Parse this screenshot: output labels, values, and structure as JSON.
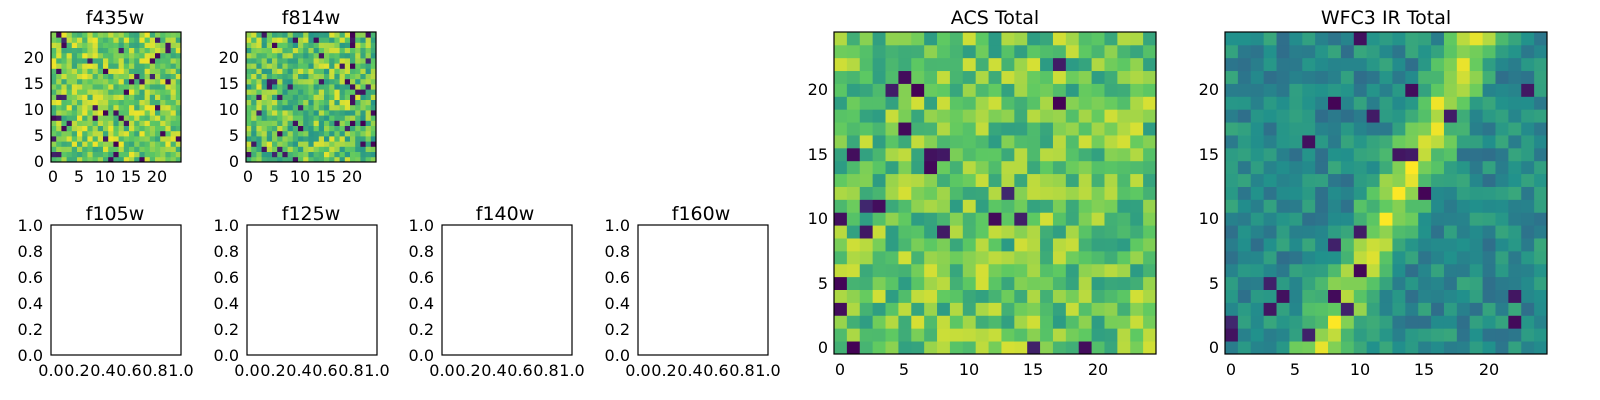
{
  "chart_data": [
    {
      "id": "f435w",
      "type": "heatmap",
      "title": "f435w",
      "grid": false,
      "colormap": "viridis",
      "x_ticks": [
        "0",
        "5",
        "10",
        "15",
        "20"
      ],
      "y_ticks": [
        "0",
        "5",
        "10",
        "15",
        "20"
      ],
      "xlim": [
        -0.5,
        24.5
      ],
      "ylim": [
        -0.5,
        24.5
      ],
      "pattern": "noise",
      "seed": 11,
      "base": 0.78,
      "spread": 0.2,
      "rows": 25,
      "cols": 25,
      "dark_fraction": 0.06
    },
    {
      "id": "f814w",
      "type": "heatmap",
      "title": "f814w",
      "grid": false,
      "colormap": "viridis",
      "x_ticks": [
        "0",
        "5",
        "10",
        "15",
        "20"
      ],
      "y_ticks": [
        "0",
        "5",
        "10",
        "15",
        "20"
      ],
      "xlim": [
        -0.5,
        24.5
      ],
      "ylim": [
        -0.5,
        24.5
      ],
      "pattern": "noise",
      "seed": 23,
      "base": 0.74,
      "spread": 0.22,
      "rows": 25,
      "cols": 25,
      "dark_fraction": 0.07
    },
    {
      "id": "f105w",
      "type": "heatmap",
      "title": "f105w",
      "empty": true,
      "x_ticks": [
        "0.0",
        "0.2",
        "0.4",
        "0.6",
        "0.8",
        "1.0"
      ],
      "y_ticks": [
        "0.0",
        "0.2",
        "0.4",
        "0.6",
        "0.8",
        "1.0"
      ],
      "xlim": [
        0,
        1
      ],
      "ylim": [
        0,
        1
      ]
    },
    {
      "id": "f125w",
      "type": "heatmap",
      "title": "f125w",
      "empty": true,
      "x_ticks": [
        "0.0",
        "0.2",
        "0.4",
        "0.6",
        "0.8",
        "1.0"
      ],
      "y_ticks": [
        "0.0",
        "0.2",
        "0.4",
        "0.6",
        "0.8",
        "1.0"
      ],
      "xlim": [
        0,
        1
      ],
      "ylim": [
        0,
        1
      ]
    },
    {
      "id": "f140w",
      "type": "heatmap",
      "title": "f140w",
      "empty": true,
      "x_ticks": [
        "0.0",
        "0.2",
        "0.4",
        "0.6",
        "0.8",
        "1.0"
      ],
      "y_ticks": [
        "0.0",
        "0.2",
        "0.4",
        "0.6",
        "0.8",
        "1.0"
      ],
      "xlim": [
        0,
        1
      ],
      "ylim": [
        0,
        1
      ]
    },
    {
      "id": "f160w",
      "type": "heatmap",
      "title": "f160w",
      "empty": true,
      "x_ticks": [
        "0.0",
        "0.2",
        "0.4",
        "0.6",
        "0.8",
        "1.0"
      ],
      "y_ticks": [
        "0.0",
        "0.2",
        "0.4",
        "0.6",
        "0.8",
        "1.0"
      ],
      "xlim": [
        0,
        1
      ],
      "ylim": [
        0,
        1
      ]
    },
    {
      "id": "acs",
      "type": "heatmap",
      "title": "ACS Total",
      "grid": false,
      "colormap": "viridis",
      "x_ticks": [
        "0",
        "5",
        "10",
        "15",
        "20"
      ],
      "y_ticks": [
        "0",
        "5",
        "10",
        "15",
        "20"
      ],
      "xlim": [
        -0.5,
        24.5
      ],
      "ylim": [
        -0.5,
        24.5
      ],
      "pattern": "noise",
      "seed": 37,
      "base": 0.74,
      "spread": 0.2,
      "rows": 25,
      "cols": 25,
      "dark_fraction": 0.045
    },
    {
      "id": "wfc3",
      "type": "heatmap",
      "title": "WFC3 IR Total",
      "grid": false,
      "colormap": "viridis",
      "x_ticks": [
        "0",
        "5",
        "10",
        "15",
        "20"
      ],
      "y_ticks": [
        "0",
        "5",
        "10",
        "15",
        "20"
      ],
      "xlim": [
        -0.5,
        24.5
      ],
      "ylim": [
        -0.5,
        24.5
      ],
      "pattern": "diagonal-band",
      "seed": 51,
      "base": 0.48,
      "spread": 0.12,
      "rows": 25,
      "cols": 25,
      "dark_fraction": 0.035
    }
  ],
  "colors": {
    "dark": "#440154",
    "blue": "#31688e",
    "teal": "#21908d",
    "green": "#35b779",
    "lime": "#8fd744",
    "yellow": "#fde725"
  }
}
